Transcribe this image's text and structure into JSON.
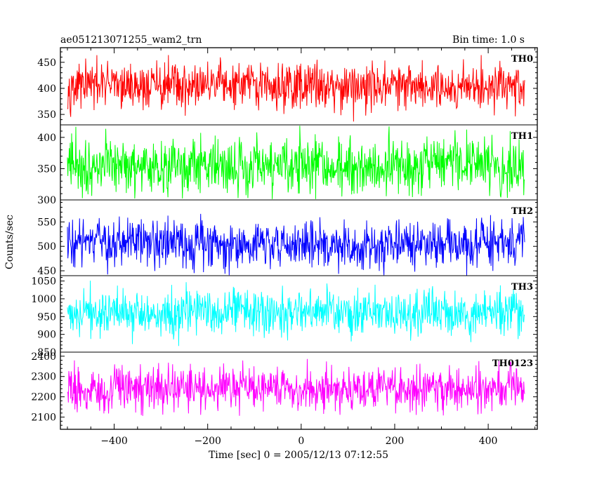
{
  "chart_data": {
    "type": "line",
    "title": "ae051213071255_wam2_trn",
    "bin_time": "Bin time: 1.0 s",
    "xlabel": "Time [sec] 0 = 2005/12/13 07:12:55",
    "ylabel": "Counts/sec",
    "xlim": [
      -515,
      505
    ],
    "data_xrange": [
      -500,
      478
    ],
    "xticks": [
      -400,
      -200,
      0,
      200,
      400
    ],
    "grid": false,
    "panels": [
      {
        "name": "TH0",
        "color": "#ff0000",
        "ylim": [
          330,
          478
        ],
        "yticks": [
          350,
          400,
          450
        ],
        "mean": 405,
        "std": 22,
        "min": 335,
        "max": 478
      },
      {
        "name": "TH1",
        "color": "#00ff00",
        "ylim": [
          300,
          420
        ],
        "yticks": [
          300,
          350,
          400
        ],
        "mean": 355,
        "std": 23,
        "min": 300,
        "max": 420
      },
      {
        "name": "TH2",
        "color": "#0000ff",
        "ylim": [
          440,
          595
        ],
        "yticks": [
          450,
          500,
          550
        ],
        "mean": 505,
        "std": 25,
        "min": 440,
        "max": 595
      },
      {
        "name": "TH3",
        "color": "#00ffff",
        "ylim": [
          850,
          1065
        ],
        "yticks": [
          850,
          900,
          950,
          1000,
          1050
        ],
        "mean": 960,
        "std": 32,
        "min": 858,
        "max": 1065
      },
      {
        "name": "TH0123",
        "color": "#ff00ff",
        "ylim": [
          2040,
          2420
        ],
        "yticks": [
          2100,
          2200,
          2300,
          2400
        ],
        "mean": 2240,
        "std": 52,
        "min": 2045,
        "max": 2410
      }
    ]
  }
}
